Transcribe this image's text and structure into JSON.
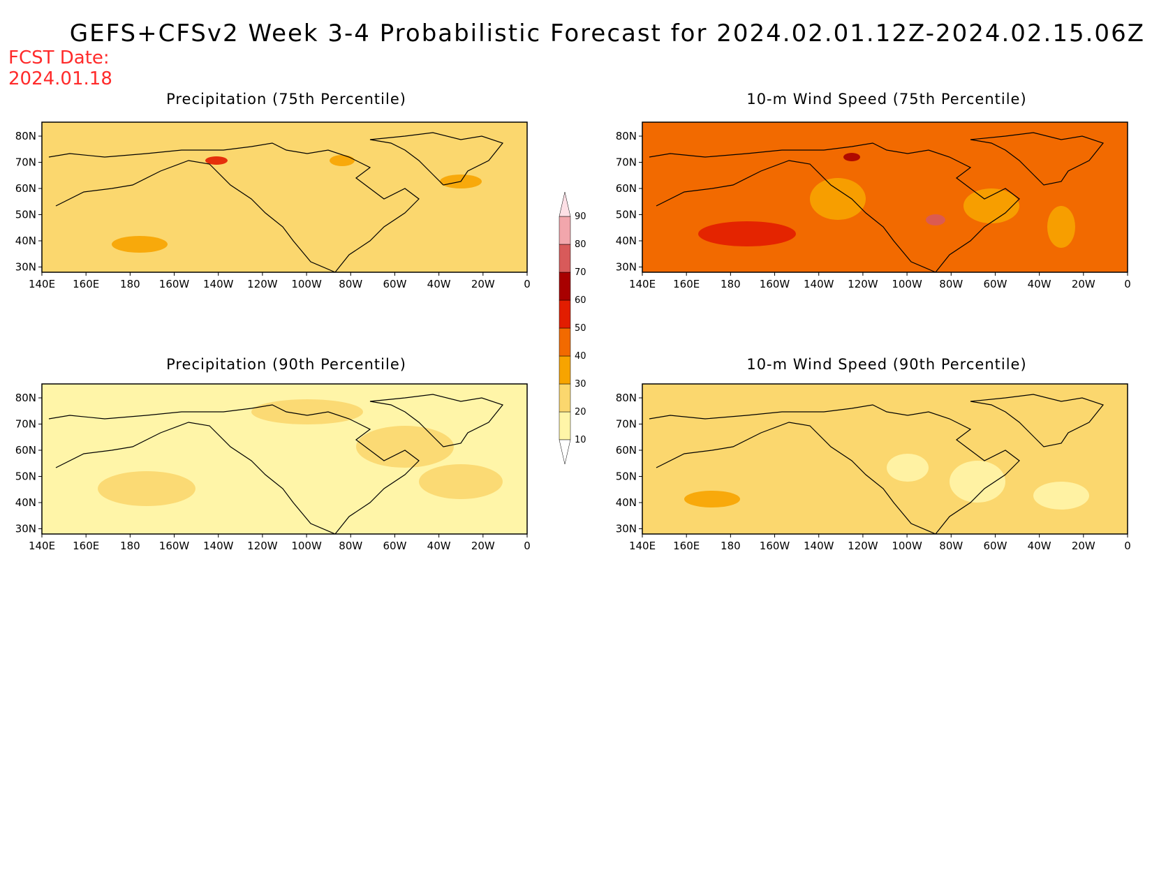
{
  "figure": {
    "title": "GEFS+CFSv2 Week 3-4 Probabilistic Forecast for 2024.02.01.12Z-2024.02.15.06Z",
    "fcst_date_label": "FCST Date:",
    "fcst_date_value": "2024.01.18"
  },
  "panels": [
    {
      "title": "Precipitation (75th Percentile)",
      "background_level": 20
    },
    {
      "title": "10-m Wind Speed (75th Percentile)",
      "background_level": 40
    },
    {
      "title": "Precipitation (90th Percentile)",
      "background_level": 10
    },
    {
      "title": "10-m Wind Speed (90th Percentile)",
      "background_level": 20
    }
  ],
  "axes": {
    "lon_ticks": [
      "140E",
      "160E",
      "180",
      "160W",
      "140W",
      "120W",
      "100W",
      "80W",
      "60W",
      "40W",
      "20W",
      "0"
    ],
    "lat_ticks": [
      "80N",
      "70N",
      "60N",
      "50N",
      "40N",
      "30N"
    ]
  },
  "colorbar": {
    "levels": [
      10,
      20,
      30,
      40,
      50,
      60,
      70,
      80,
      90
    ],
    "colors": [
      "#ffffff",
      "#fff5a8",
      "#fbd76e",
      "#f7a400",
      "#f26a00",
      "#e21d00",
      "#a80000",
      "#d85a5a",
      "#f2a6ac",
      "#fde0e6"
    ]
  }
}
